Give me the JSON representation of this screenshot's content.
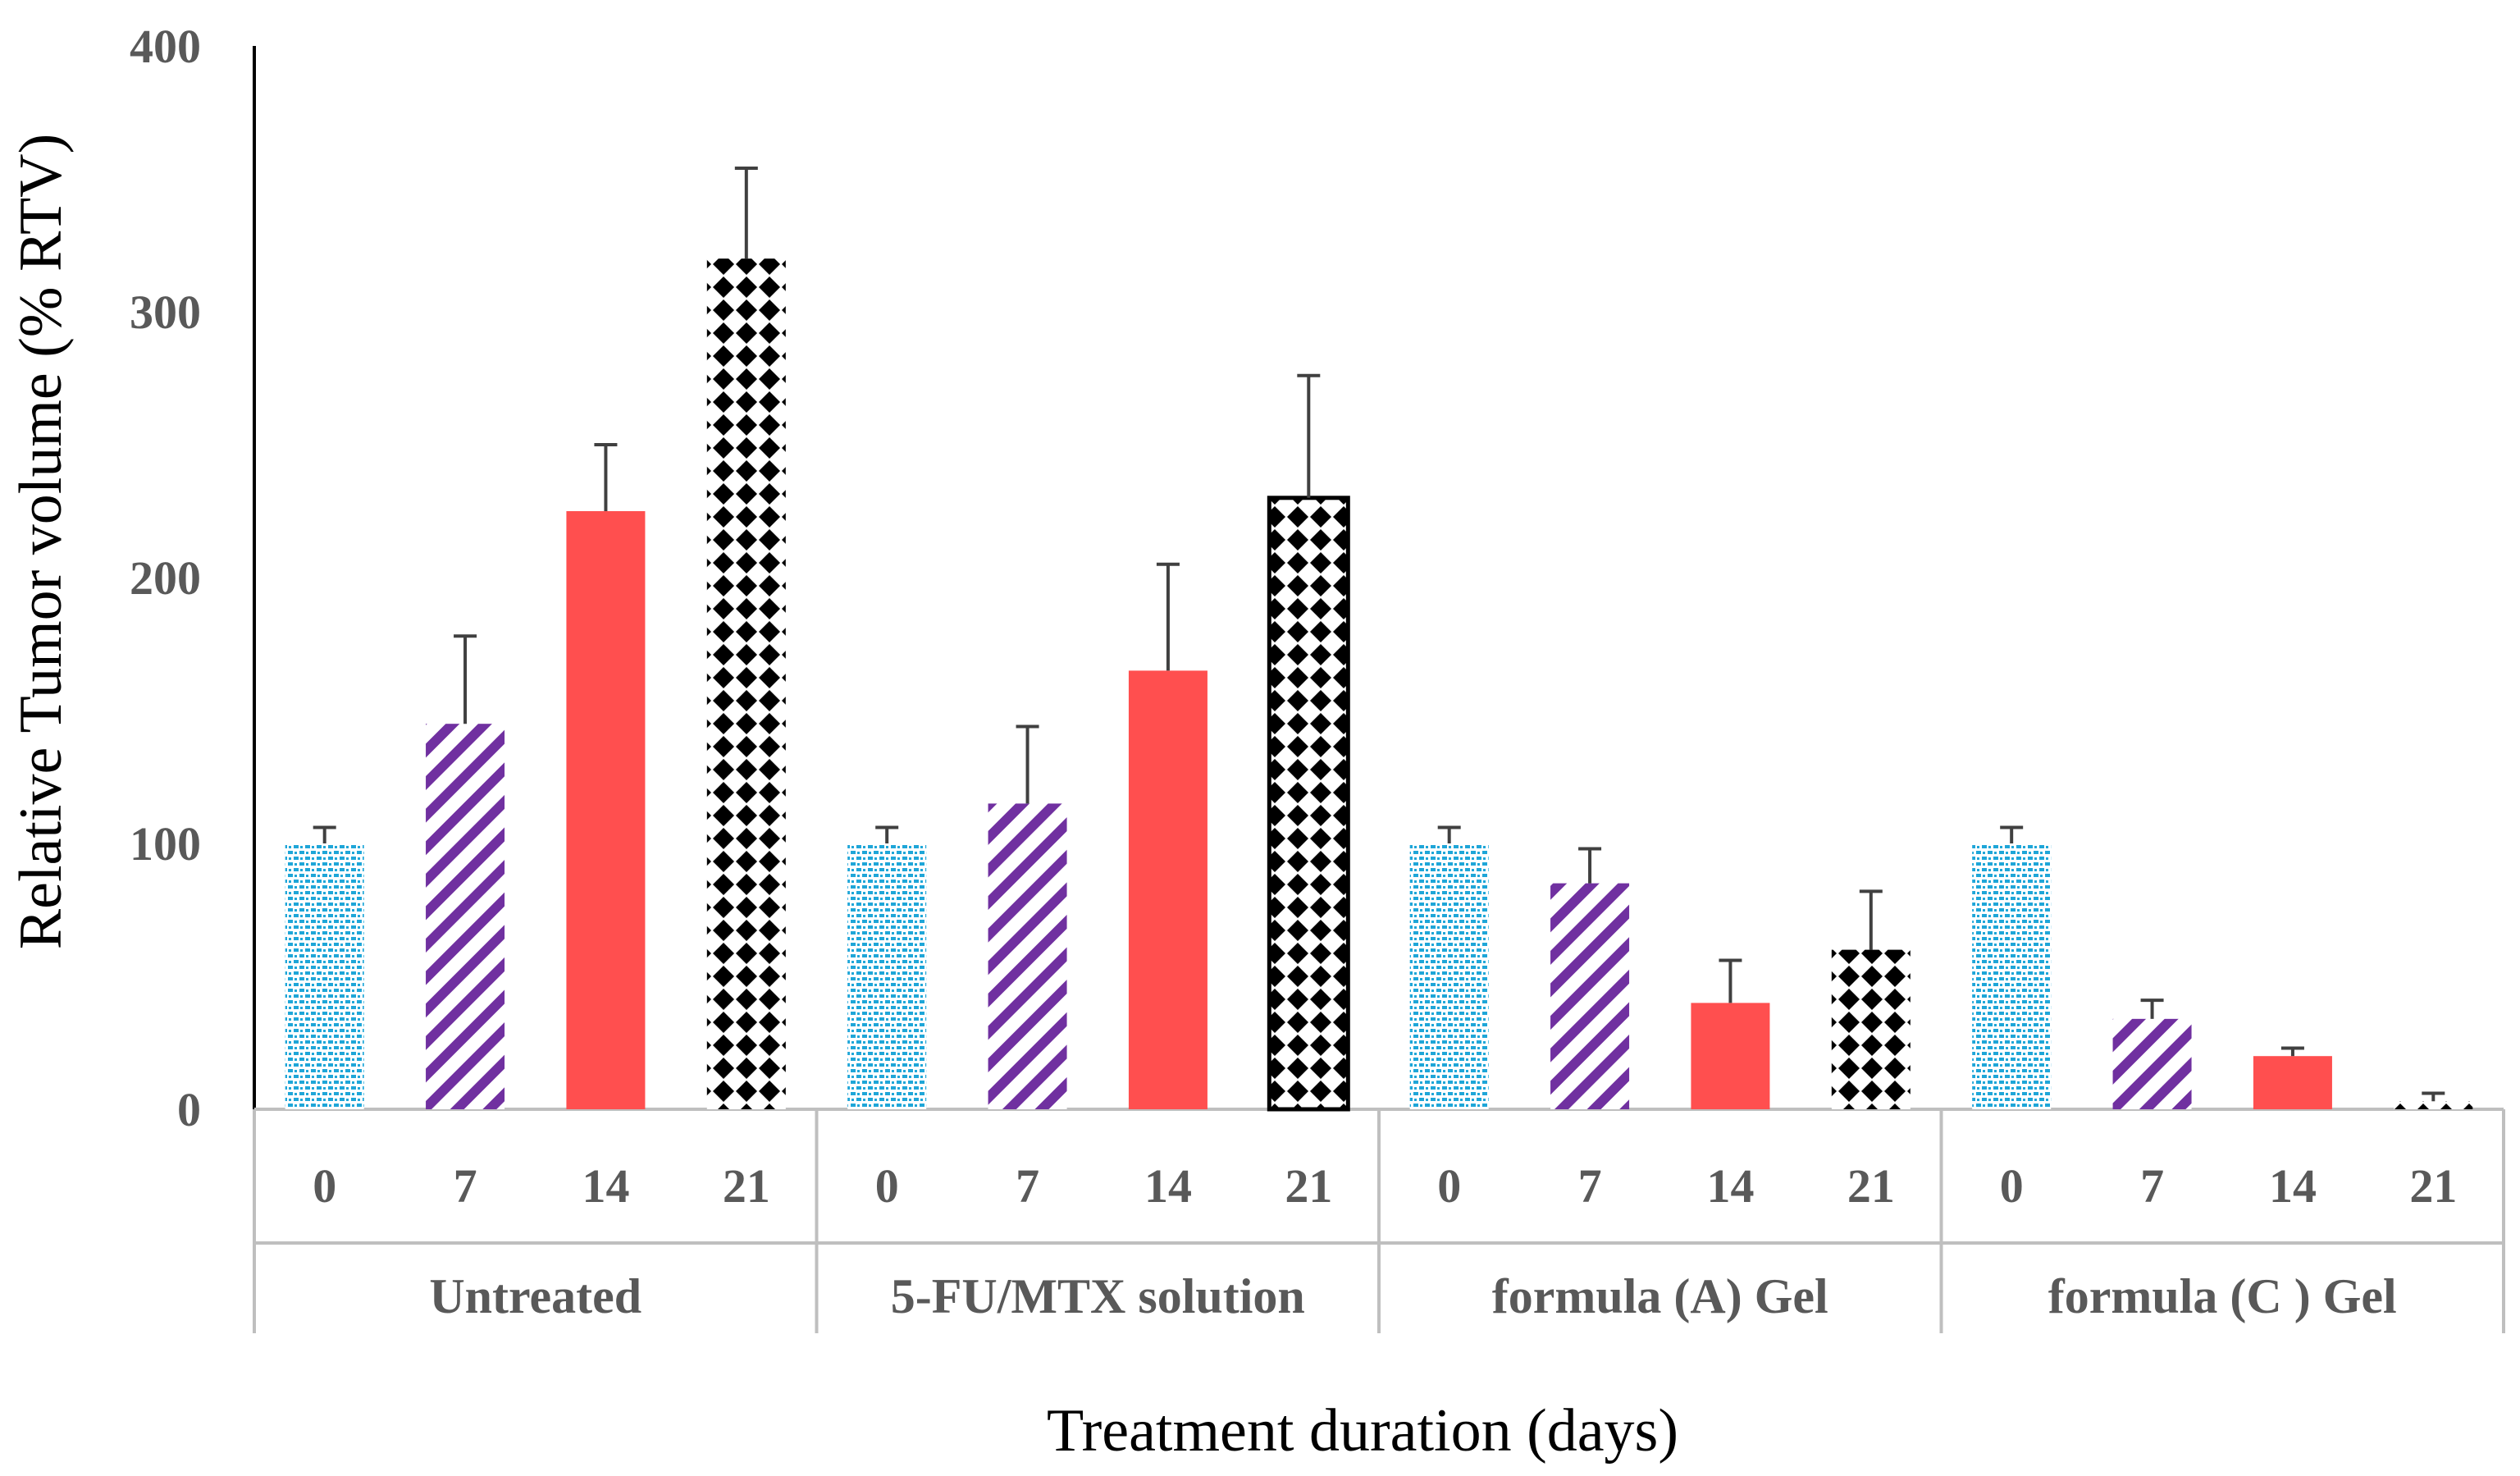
{
  "chart_data": {
    "type": "bar",
    "title": "",
    "xlabel": "Treatment duration (days)",
    "ylabel": "Relative Tumor volume (% RTV)",
    "ylim": [
      0,
      400
    ],
    "yticks": [
      "0",
      "100",
      "200",
      "300",
      "400"
    ],
    "groups": [
      {
        "name": "Untreated",
        "days": [
          "0",
          "7",
          "14",
          "21"
        ],
        "values": [
          100,
          145,
          225,
          320
        ],
        "errors": [
          6,
          33,
          25,
          34
        ]
      },
      {
        "name": "5-FU/MTX solution",
        "days": [
          "0",
          "7",
          "14",
          "21"
        ],
        "values": [
          100,
          115,
          165,
          230
        ],
        "errors": [
          6,
          29,
          40,
          46
        ]
      },
      {
        "name": "formula (A) Gel",
        "days": [
          "0",
          "7",
          "14",
          "21"
        ],
        "values": [
          100,
          85,
          40,
          60
        ],
        "errors": [
          6,
          13,
          16,
          22
        ]
      },
      {
        "name": "formula (C ) Gel",
        "days": [
          "0",
          "7",
          "14",
          "21"
        ],
        "values": [
          100,
          34,
          20,
          3
        ],
        "errors": [
          6,
          7,
          3,
          3
        ]
      }
    ],
    "series_styles": [
      {
        "day": "0",
        "pattern": "dots-blue",
        "color": "#1fa6d8"
      },
      {
        "day": "7",
        "pattern": "diagonal-purple",
        "color": "#7030a0"
      },
      {
        "day": "14",
        "pattern": "solid-red",
        "color": "#ff4f4f"
      },
      {
        "day": "21",
        "pattern": "checker-black",
        "color": "#000000"
      }
    ],
    "grid": false,
    "legend": "none"
  }
}
